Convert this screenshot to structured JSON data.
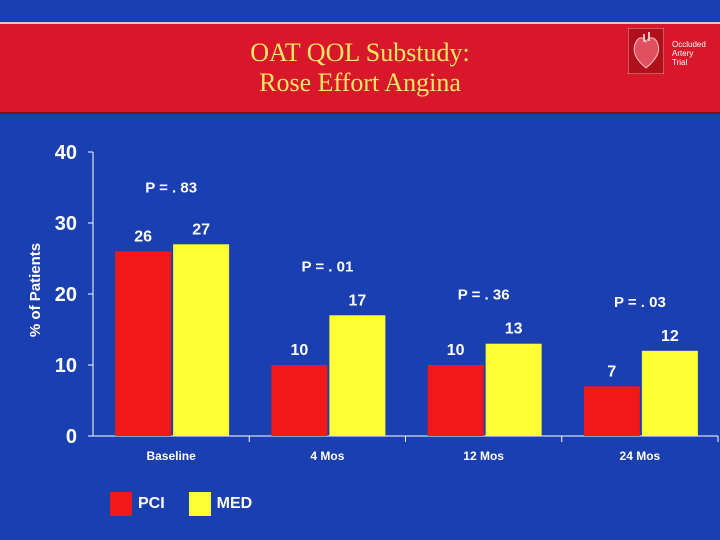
{
  "header": {
    "title_line1": "OAT QOL Substudy:",
    "title_line2": "Rose Effort Angina",
    "logo_lines": [
      "Occluded",
      "Artery",
      "Trial"
    ]
  },
  "colors": {
    "background": "#1a3fb0",
    "title_bar": "#d8182a",
    "title_text": "#ffe766",
    "pci": "#f01818",
    "med": "#ffff33"
  },
  "chart_data": {
    "type": "bar",
    "title": "OAT QOL Substudy: Rose Effort Angina",
    "xlabel": "",
    "ylabel": "% of Patients",
    "ylim": [
      0,
      40
    ],
    "yticks": [
      "0",
      "10",
      "20",
      "30",
      "40"
    ],
    "categories": [
      "Baseline",
      "4 Mos",
      "12 Mos",
      "24 Mos"
    ],
    "series": [
      {
        "name": "PCI",
        "values": [
          26,
          10,
          10,
          7
        ],
        "labels": [
          "26",
          "10",
          "10",
          "7"
        ]
      },
      {
        "name": "MED",
        "values": [
          27,
          17,
          13,
          12
        ],
        "labels": [
          "27",
          "17",
          "13",
          "12"
        ]
      }
    ],
    "p_values": [
      "P = . 83",
      "P = . 01",
      "P = . 36",
      "P = . 03"
    ],
    "legend": [
      "PCI",
      "MED"
    ],
    "legend_position": "bottom-left"
  }
}
